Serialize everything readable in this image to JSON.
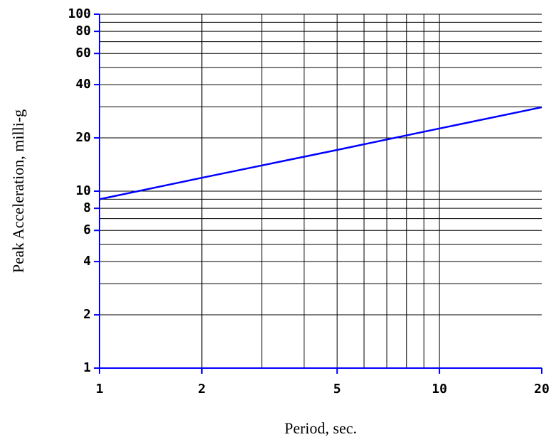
{
  "chart_data": {
    "type": "line",
    "x_label": "Period, sec.",
    "y_label": "Peak Acceleration, milli-g",
    "x": [
      1,
      2,
      5,
      10,
      20
    ],
    "series": [
      {
        "name": "Peak acceleration",
        "color": "#0000ff",
        "values": [
          9,
          11.9,
          17.1,
          22.6,
          29.8
        ]
      }
    ],
    "xscale": "log",
    "yscale": "log",
    "xlim": [
      1,
      20
    ],
    "ylim": [
      1,
      100
    ],
    "xticks": [
      1,
      2,
      5,
      10,
      20
    ],
    "yticks": [
      1,
      2,
      4,
      6,
      8,
      10,
      20,
      40,
      60,
      80,
      100
    ],
    "grid": true,
    "xgrid": [
      2,
      3,
      4,
      5,
      6,
      7,
      8,
      9,
      10
    ],
    "ygrid": [
      2,
      3,
      4,
      5,
      6,
      7,
      8,
      9,
      10,
      20,
      30,
      40,
      50,
      60,
      70,
      80,
      90,
      100
    ],
    "axis_color": "#0000ff"
  }
}
